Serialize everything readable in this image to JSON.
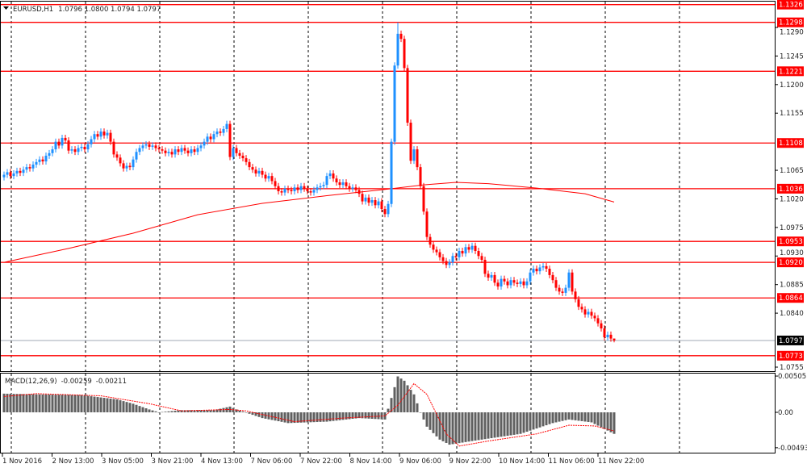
{
  "header": {
    "symbol": "EURUSD,H1",
    "ohlc": "1.0796 1.0800 1.0794 1.0797"
  },
  "macd_label": {
    "name": "MACD(12,26,9)",
    "main": "-0.00259",
    "signal": "-0.00211"
  },
  "colors": {
    "up": "#1e90ff",
    "down": "#ff0000",
    "level": "#ff0000",
    "bid": "#a0a8b4",
    "histogram": "#606060",
    "signal": "#ff0000"
  },
  "chart_data": [
    {
      "type": "candlestick",
      "timeframe": "H1",
      "ylim": [
        1.074,
        1.1335
      ],
      "price_ticks": [
        "1.1290",
        "1.1245",
        "1.1200",
        "1.1155",
        "1.1065",
        "1.1020",
        "1.0975",
        "1.0930",
        "1.0885",
        "1.0840",
        "1.0755"
      ],
      "time_labels": [
        "1 Nov 2016",
        "2 Nov 13:00",
        "3 Nov 05:00",
        "3 Nov 21:00",
        "4 Nov 13:00",
        "7 Nov 06:00",
        "7 Nov 22:00",
        "8 Nov 14:00",
        "9 Nov 06:00",
        "9 Nov 22:00",
        "10 Nov 14:00",
        "11 Nov 06:00",
        "11 Nov 22:00"
      ],
      "levels": [
        "1.1326",
        "1.1298",
        "1.1221",
        "1.1108",
        "1.1036",
        "1.0953",
        "1.0920",
        "1.0864",
        "1.0773"
      ],
      "bid": "1.0797",
      "spike_high": 1.1298,
      "last_candle": {
        "open": 1.0796,
        "high": 1.08,
        "low": 1.0794,
        "close": 1.0797
      },
      "closes": [
        1.1058,
        1.1062,
        1.1056,
        1.106,
        1.1064,
        1.1061,
        1.1066,
        1.107,
        1.1068,
        1.1074,
        1.1078,
        1.1082,
        1.1079,
        1.1088,
        1.1092,
        1.1098,
        1.111,
        1.1104,
        1.1116,
        1.1112,
        1.1096,
        1.1098,
        1.1094,
        1.11,
        1.1102,
        1.1098,
        1.1106,
        1.1114,
        1.1122,
        1.1118,
        1.1126,
        1.112,
        1.1124,
        1.111,
        1.109,
        1.1085,
        1.1076,
        1.1068,
        1.1072,
        1.107,
        1.1082,
        1.1094,
        1.11,
        1.1104,
        1.1106,
        1.1102,
        1.1104,
        1.11,
        1.1098,
        1.1096,
        1.1092,
        1.1094,
        1.109,
        1.1098,
        1.1094,
        1.11,
        1.1096,
        1.1092,
        1.1098,
        1.1094,
        1.11,
        1.1104,
        1.111,
        1.1118,
        1.1114,
        1.1122,
        1.1126,
        1.1124,
        1.113,
        1.1138,
        1.1086,
        1.11,
        1.1092,
        1.1088,
        1.1084,
        1.1078,
        1.107,
        1.1066,
        1.106,
        1.1064,
        1.1058,
        1.1052,
        1.1056,
        1.1048,
        1.104,
        1.1032,
        1.103,
        1.1036,
        1.1034,
        1.1032,
        1.1038,
        1.1034,
        1.104,
        1.1036,
        1.1032,
        1.103,
        1.1034,
        1.1038,
        1.104,
        1.1042,
        1.1056,
        1.106,
        1.1052,
        1.1046,
        1.1042,
        1.1046,
        1.104,
        1.1036,
        1.1038,
        1.1034,
        1.1028,
        1.1016,
        1.1022,
        1.1014,
        1.1018,
        1.101,
        1.1016,
        1.1004,
        1.0996,
        1.1012,
        1.111,
        1.123,
        1.128,
        1.1272,
        1.1226,
        1.114,
        1.108,
        1.1098,
        1.107,
        1.104,
        1.1,
        1.096,
        1.0948,
        1.094,
        1.0936,
        1.0928,
        1.0922,
        1.0916,
        1.092,
        1.093,
        1.0928,
        1.0938,
        1.0934,
        1.0944,
        1.094,
        1.0946,
        1.0938,
        1.093,
        1.0924,
        1.0902,
        1.0896,
        1.09,
        1.0888,
        1.0882,
        1.0894,
        1.089,
        1.0884,
        1.0892,
        1.0888,
        1.0886,
        1.089,
        1.0884,
        1.089,
        1.0904,
        1.091,
        1.0906,
        1.0912,
        1.0914,
        1.091,
        1.09,
        1.0892,
        1.088,
        1.0874,
        1.0872,
        1.088,
        1.0904,
        1.0874,
        1.0862,
        1.085,
        1.0846,
        1.0838,
        1.0842,
        1.0836,
        1.0832,
        1.0824,
        1.0816,
        1.0802,
        1.0806,
        1.08,
        1.0797
      ],
      "moving_average": [
        [
          0,
          1.092
        ],
        [
          40,
          1.0942
        ],
        [
          80,
          1.0966
        ],
        [
          120,
          1.0995
        ],
        [
          160,
          1.1013
        ],
        [
          200,
          1.1025
        ],
        [
          240,
          1.1036
        ],
        [
          260,
          1.1042
        ],
        [
          280,
          1.1046
        ],
        [
          300,
          1.1044
        ],
        [
          330,
          1.1037
        ],
        [
          360,
          1.1028
        ],
        [
          378,
          1.1015
        ]
      ]
    },
    {
      "type": "bar+line",
      "indicator": "MACD(12,26,9)",
      "ylim": [
        -0.00493,
        0.00505
      ],
      "ticks": [
        "0.00505",
        "0.00",
        "-0.00493"
      ],
      "histogram_keypoints": [
        [
          0,
          0.0026
        ],
        [
          10,
          0.0025
        ],
        [
          24,
          0.0024
        ],
        [
          35,
          0.0018
        ],
        [
          40,
          0.0012
        ],
        [
          45,
          0.0004
        ],
        [
          48,
          0.0
        ],
        [
          55,
          0.0003
        ],
        [
          65,
          0.0003
        ],
        [
          70,
          0.0008
        ],
        [
          72,
          0.0004
        ],
        [
          80,
          -0.0008
        ],
        [
          88,
          -0.0015
        ],
        [
          100,
          -0.0013
        ],
        [
          110,
          -0.0008
        ],
        [
          118,
          -0.001
        ],
        [
          120,
          0.002
        ],
        [
          122,
          0.005
        ],
        [
          124,
          0.0044
        ],
        [
          127,
          0.0025
        ],
        [
          129,
          0.0
        ],
        [
          131,
          -0.002
        ],
        [
          135,
          -0.0038
        ],
        [
          138,
          -0.0045
        ],
        [
          145,
          -0.004
        ],
        [
          160,
          -0.003
        ],
        [
          170,
          -0.0015
        ],
        [
          175,
          -0.001
        ],
        [
          182,
          -0.0014
        ],
        [
          189,
          -0.003
        ]
      ],
      "signal_keypoints": [
        [
          0,
          0.0022
        ],
        [
          10,
          0.0026
        ],
        [
          30,
          0.0023
        ],
        [
          45,
          0.0012
        ],
        [
          55,
          0.0002
        ],
        [
          70,
          0.0004
        ],
        [
          75,
          0.0002
        ],
        [
          90,
          -0.0013
        ],
        [
          105,
          -0.0008
        ],
        [
          118,
          -0.0005
        ],
        [
          122,
          0.001
        ],
        [
          127,
          0.004
        ],
        [
          131,
          0.0025
        ],
        [
          137,
          -0.003
        ],
        [
          141,
          -0.0047
        ],
        [
          150,
          -0.004
        ],
        [
          165,
          -0.003
        ],
        [
          175,
          -0.0018
        ],
        [
          183,
          -0.0019
        ],
        [
          189,
          -0.0026
        ]
      ]
    }
  ]
}
